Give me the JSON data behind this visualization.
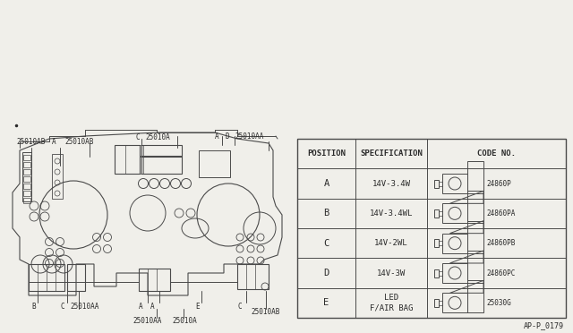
{
  "bg_color": "#f0efea",
  "table": {
    "headers": [
      "POSITION",
      "SPECIFICATION",
      "CODE NO."
    ],
    "rows": [
      {
        "pos": "A",
        "spec": "14V-3.4W",
        "code": "24860P",
        "has_cap": false
      },
      {
        "pos": "B",
        "spec": "14V-3.4WL",
        "code": "24860PA",
        "has_cap": true
      },
      {
        "pos": "C",
        "spec": "14V-2WL",
        "code": "24860PB",
        "has_cap": true
      },
      {
        "pos": "D",
        "spec": "14V-3W",
        "code": "24860PC",
        "has_cap": true
      },
      {
        "pos": "E",
        "spec": "LED\nF/AIR BAG",
        "code": "25030G",
        "has_cap": true
      }
    ]
  },
  "footnote": "AP-P_0179",
  "text_color": "#2a2a2a",
  "line_color": "#4a4a4a",
  "font_size_small": 5.5,
  "font_size_table": 7.0
}
